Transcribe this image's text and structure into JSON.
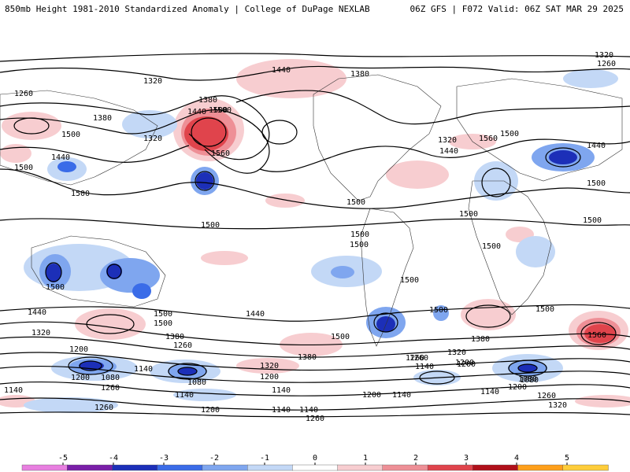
{
  "header": {
    "left_title": "850mb Height 1981-2010 Standardized Anomaly | College of DuPage NEXLAB",
    "right_title": "06Z GFS | F072 Valid: 06Z SAT MAR 29 2025"
  },
  "contour_labels": [
    "1320",
    "1260",
    "1440",
    "1380",
    "1380",
    "1500",
    "1440",
    "1560",
    "1320",
    "1500",
    "1380",
    "1500",
    "1440",
    "1500",
    "1320",
    "1500",
    "1560",
    "1440",
    "1500",
    "1440",
    "1260",
    "1500",
    "1500",
    "1500",
    "1500",
    "1500",
    "1500",
    "1500",
    "1500",
    "1500",
    "1500",
    "1500",
    "1440",
    "1320",
    "1500",
    "1500",
    "1440",
    "1380",
    "1260",
    "1500",
    "1560",
    "1500",
    "1380",
    "1320",
    "1200",
    "1200",
    "1260",
    "1140",
    "1080",
    "1200",
    "1140",
    "1080",
    "1260",
    "1200",
    "1140",
    "1140",
    "1380",
    "1320",
    "1260",
    "1200",
    "1140",
    "1140",
    "1080",
    "1200",
    "1260",
    "1320",
    "1320",
    "1260",
    "1140",
    "1200",
    "1080",
    "1140",
    "1260",
    "1200",
    "1140"
  ],
  "colorbar": {
    "ticks": [
      "-5",
      "-4",
      "-3",
      "-2",
      "-1",
      "0",
      "1",
      "2",
      "3",
      "4",
      "5"
    ],
    "colors": [
      "#e87fe0",
      "#7a1fa8",
      "#1c2fb8",
      "#3a6ce8",
      "#7fa6ef",
      "#c3d8f6",
      "#ffffff",
      "#f7cdd0",
      "#ee8f96",
      "#e0444c",
      "#b0101a",
      "#ff9f1a",
      "#ffcd3a"
    ]
  },
  "anomaly_colors": {
    "positive_light": "#f7cdd0",
    "positive_mid": "#ee8f96",
    "positive_strong": "#e0444c",
    "negative_light": "#c3d8f6",
    "negative_mid": "#7fa6ef",
    "negative_strong": "#3a6ce8",
    "negative_deep": "#1c2fb8"
  }
}
